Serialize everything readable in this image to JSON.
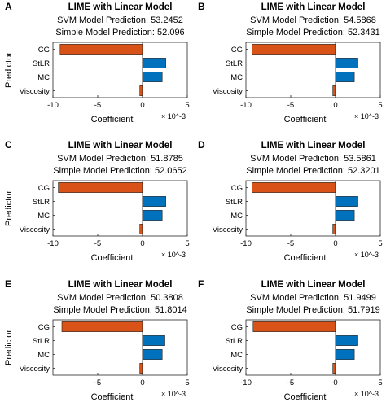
{
  "chart_data": [
    {
      "type": "bar",
      "orientation": "horizontal",
      "panel": "A",
      "title": "LIME with Linear Model",
      "subtitle_lines": [
        "SVM Model Prediction: 53.2452",
        "Simple Model Prediction: 52.096"
      ],
      "categories": [
        "CG",
        "StLR",
        "MC",
        "Viscosity"
      ],
      "values": [
        -9.2,
        2.6,
        2.2,
        -0.3
      ],
      "bar_colors": [
        "#D95319",
        "#0072BD",
        "#0072BD",
        "#D95319"
      ],
      "xlabel": "Coefficient",
      "ylabel": "Predictor",
      "xlim": [
        -10,
        5
      ],
      "x_ticks": [
        "-10",
        "-5",
        "0",
        "5"
      ],
      "x_tick_values": [
        -10,
        -5,
        0,
        5
      ],
      "x_exponent": "× 10^-3",
      "y_order": "top-to-bottom"
    },
    {
      "type": "bar",
      "orientation": "horizontal",
      "panel": "B",
      "title": "LIME with Linear Model",
      "subtitle_lines": [
        "SVM Model Prediction: 54.5868",
        "Simple Model Prediction: 52.3431"
      ],
      "categories": [
        "CG",
        "StLR",
        "MC",
        "Viscosity"
      ],
      "values": [
        -9.3,
        2.5,
        2.1,
        -0.3
      ],
      "bar_colors": [
        "#D95319",
        "#0072BD",
        "#0072BD",
        "#D95319"
      ],
      "xlabel": "Coefficient",
      "ylabel": "",
      "xlim": [
        -10,
        5
      ],
      "x_ticks": [
        "-10",
        "-5",
        "0",
        "5"
      ],
      "x_tick_values": [
        -10,
        -5,
        0,
        5
      ],
      "x_exponent": "× 10^-3",
      "y_order": "top-to-bottom"
    },
    {
      "type": "bar",
      "orientation": "horizontal",
      "panel": "C",
      "title": "LIME with Linear Model",
      "subtitle_lines": [
        "SVM Model Prediction: 51.8785",
        "Simple Model Prediction: 52.0652"
      ],
      "categories": [
        "CG",
        "StLR",
        "MC",
        "Viscosity"
      ],
      "values": [
        -9.4,
        2.6,
        2.2,
        -0.3
      ],
      "bar_colors": [
        "#D95319",
        "#0072BD",
        "#0072BD",
        "#D95319"
      ],
      "xlabel": "Coefficient",
      "ylabel": "Predictor",
      "xlim": [
        -10,
        5
      ],
      "x_ticks": [
        "-10",
        "-5",
        "0",
        "5"
      ],
      "x_tick_values": [
        -10,
        -5,
        0,
        5
      ],
      "x_exponent": "× 10^-3",
      "y_order": "top-to-bottom"
    },
    {
      "type": "bar",
      "orientation": "horizontal",
      "panel": "D",
      "title": "LIME with Linear Model",
      "subtitle_lines": [
        "SVM Model Prediction: 53.5861",
        "Simple Model Prediction: 52.3201"
      ],
      "categories": [
        "CG",
        "StLR",
        "MC",
        "Viscosity"
      ],
      "values": [
        -9.3,
        2.5,
        2.1,
        -0.3
      ],
      "bar_colors": [
        "#D95319",
        "#0072BD",
        "#0072BD",
        "#D95319"
      ],
      "xlabel": "Coefficient",
      "ylabel": "",
      "xlim": [
        -10,
        5
      ],
      "x_ticks": [
        "-10",
        "-5",
        "0",
        "5"
      ],
      "x_tick_values": [
        -10,
        -5,
        0,
        5
      ],
      "x_exponent": "× 10^-3",
      "y_order": "top-to-bottom"
    },
    {
      "type": "bar",
      "orientation": "horizontal",
      "panel": "E",
      "title": "LIME with Linear Model",
      "subtitle_lines": [
        "SVM Model Prediction: 50.3808",
        "Simple Model Prediction: 51.8014"
      ],
      "categories": [
        "CG",
        "StLR",
        "MC",
        "Viscosity"
      ],
      "values": [
        -9.0,
        2.5,
        2.2,
        -0.3
      ],
      "bar_colors": [
        "#D95319",
        "#0072BD",
        "#0072BD",
        "#D95319"
      ],
      "xlabel": "Coefficient",
      "ylabel": "Predictor",
      "xlim": [
        -10,
        5
      ],
      "x_ticks": [
        "-5",
        "0",
        "5"
      ],
      "x_tick_values": [
        -5,
        0,
        5
      ],
      "x_exponent": "× 10^-3",
      "y_order": "top-to-bottom"
    },
    {
      "type": "bar",
      "orientation": "horizontal",
      "panel": "F",
      "title": "LIME with Linear Model",
      "subtitle_lines": [
        "SVM Model Prediction: 51.9499",
        "Simple Model Prediction: 51.7919"
      ],
      "categories": [
        "CG",
        "StLR",
        "MC",
        "Viscosity"
      ],
      "values": [
        -9.2,
        2.5,
        2.1,
        -0.3
      ],
      "bar_colors": [
        "#D95319",
        "#0072BD",
        "#0072BD",
        "#D95319"
      ],
      "xlabel": "Coefficient",
      "ylabel": "",
      "xlim": [
        -10,
        5
      ],
      "x_ticks": [
        "-10",
        "-5",
        "0",
        "5"
      ],
      "x_tick_values": [
        -10,
        -5,
        0,
        5
      ],
      "x_exponent": "× 10^-3",
      "y_order": "top-to-bottom"
    }
  ]
}
